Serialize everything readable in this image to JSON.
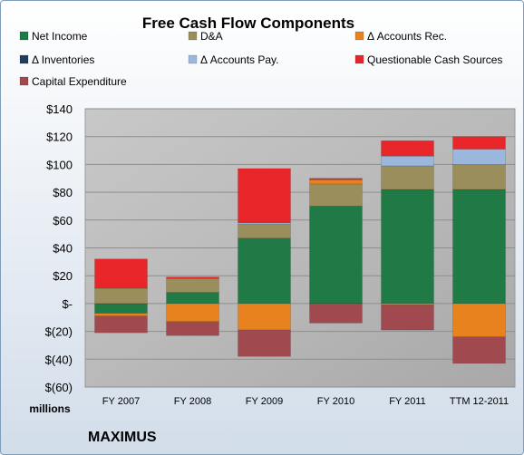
{
  "chart_data": {
    "type": "bar",
    "stacked": true,
    "title": "Free Cash Flow Components",
    "ylabel": "millions",
    "company": "MAXIMUS",
    "categories": [
      "FY 2007",
      "FY 2008",
      "FY 2009",
      "FY 2010",
      "FY 2011",
      "TTM 12-2011"
    ],
    "ylim": [
      -60,
      140
    ],
    "ytick_values": [
      140,
      120,
      100,
      80,
      60,
      40,
      20,
      0,
      -20,
      -40,
      -60
    ],
    "ytick_labels": [
      "$140",
      "$120",
      "$100",
      "$80",
      "$60",
      "$40",
      "$20",
      "$-",
      "$(20)",
      "$(40)",
      "$(60)"
    ],
    "grid": true,
    "legend_position": "top",
    "series": [
      {
        "name": "Net Income",
        "color": "#1f7a45",
        "values": [
          -7,
          8,
          47,
          70,
          82,
          82
        ]
      },
      {
        "name": "D&A",
        "color": "#9a8f5c",
        "values": [
          11,
          10,
          10,
          16,
          17,
          18
        ]
      },
      {
        "name": "Δ Accounts Rec.",
        "color": "#e8821e",
        "values": [
          -2,
          -13,
          -19,
          3,
          -1,
          -24
        ]
      },
      {
        "name": "Δ Inventories",
        "color": "#1f3d5c",
        "values": [
          0,
          0,
          0,
          0,
          0,
          0
        ]
      },
      {
        "name": "Δ Accounts Pay.",
        "color": "#9ab8dc",
        "values": [
          0,
          0,
          1,
          0,
          7,
          11
        ]
      },
      {
        "name": "Questionable Cash Sources",
        "color": "#e8262a",
        "values": [
          21,
          1,
          39,
          1,
          11,
          9
        ]
      },
      {
        "name": "Capital Expenditure",
        "color": "#a04a50",
        "values": [
          -12,
          -10,
          -19,
          -14,
          -18,
          -19
        ]
      }
    ]
  }
}
